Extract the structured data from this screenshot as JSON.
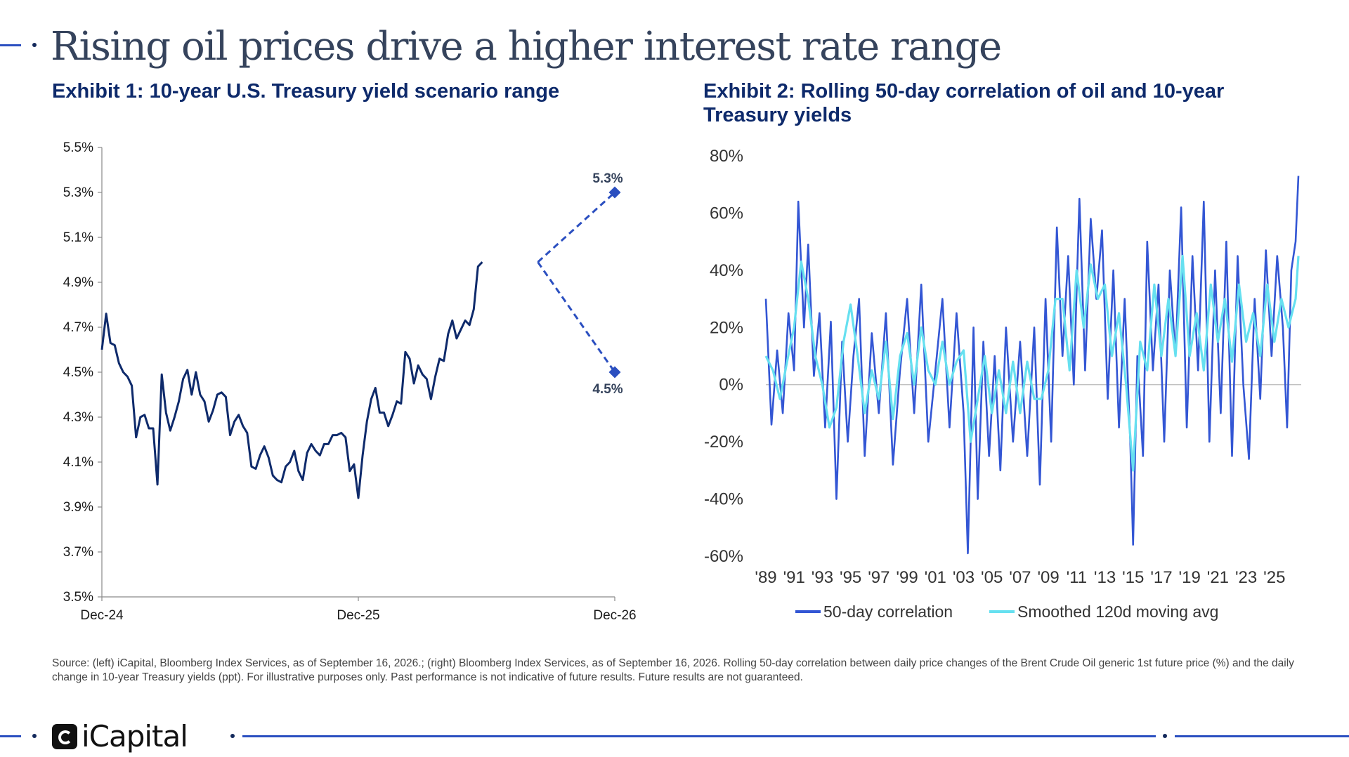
{
  "title": "Rising oil prices drive a higher interest rate range",
  "logo_text": "iCapital",
  "source": "Source: (left) iCapital, Bloomberg Index Services, as of September 16, 2026.; (right) Bloomberg Index Services, as of September 16, 2026. Rolling 50-day correlation between daily price changes of the Brent Crude Oil generic 1st future price (%) and the daily change in 10-year Treasury yields (ppt). For illustrative purposes only. Past performance is not indicative of future results. Future results are not guaranteed.",
  "colors": {
    "accent": "#2b4fc0",
    "navy": "#0e2a6b",
    "corr": "#3356d4",
    "smooth": "#66e0f0"
  },
  "chart_data": [
    {
      "type": "line",
      "title": "Exhibit 1: 10-year U.S. Treasury yield scenario range",
      "xlabel": "",
      "ylabel": "",
      "x_ticks": [
        "Dec-24",
        "Dec-25",
        "Dec-26"
      ],
      "y_ticks": [
        "5.5%",
        "5.3%",
        "5.1%",
        "4.9%",
        "4.7%",
        "4.5%",
        "4.3%",
        "4.1%",
        "3.9%",
        "3.7%",
        "3.5%"
      ],
      "ylim": [
        3.5,
        5.5
      ],
      "xlim": [
        0,
        24
      ],
      "grid": false,
      "series": [
        {
          "style": "solid",
          "x": [
            0,
            0.2,
            0.4,
            0.6,
            0.8,
            1.0,
            1.2,
            1.4,
            1.6,
            1.8,
            2.0,
            2.2,
            2.4,
            2.6,
            2.8,
            3.0,
            3.2,
            3.4,
            3.6,
            3.8,
            4.0,
            4.2,
            4.4,
            4.6,
            4.8,
            5.0,
            5.2,
            5.4,
            5.6,
            5.8,
            6.0,
            6.2,
            6.4,
            6.6,
            6.8,
            7.0,
            7.2,
            7.4,
            7.6,
            7.8,
            8.0,
            8.2,
            8.4,
            8.6,
            8.8,
            9.0,
            9.2,
            9.4,
            9.6,
            9.8,
            10.0,
            10.2,
            10.4,
            10.6,
            10.8,
            11.0,
            11.2,
            11.4,
            11.6,
            11.8,
            12.0,
            12.2,
            12.4,
            12.6,
            12.8,
            13.0,
            13.2,
            13.4,
            13.6,
            13.8,
            14.0,
            14.2,
            14.4,
            14.6,
            14.8,
            15.0,
            15.2,
            15.4,
            15.6,
            15.8,
            16.0,
            16.2,
            16.4,
            16.6,
            16.8,
            17.0,
            17.2,
            17.4,
            17.6,
            17.8,
            18.0,
            18.2,
            18.4,
            18.6,
            18.8,
            19.0,
            19.2,
            19.4,
            19.6,
            19.8,
            20.0,
            20.2,
            20.4,
            20.6,
            20.8,
            21.0,
            21.2,
            21.4,
            21.6,
            21.8,
            22.0,
            22.2,
            22.4,
            22.6,
            22.8,
            23.0,
            23.2,
            23.4,
            23.6,
            23.8,
            24.0
          ],
          "y": [
            4.6,
            4.76,
            4.63,
            4.62,
            4.54,
            4.5,
            4.48,
            4.44,
            4.21,
            4.3,
            4.31,
            4.25,
            4.25,
            4.0,
            4.49,
            4.32,
            4.24,
            4.3,
            4.37,
            4.47,
            4.51,
            4.4,
            4.5,
            4.4,
            4.37,
            4.28,
            4.33,
            4.4,
            4.41,
            4.39,
            4.22,
            4.28,
            4.31,
            4.26,
            4.23,
            4.08,
            4.07,
            4.13,
            4.17,
            4.12,
            4.04,
            4.02,
            4.01,
            4.08,
            4.1,
            4.15,
            4.06,
            4.02,
            4.14,
            4.18,
            4.15,
            4.13,
            4.18,
            4.18,
            4.22,
            4.22,
            4.23,
            4.21,
            4.06,
            4.09,
            3.94,
            4.13,
            4.28,
            4.38,
            4.43,
            4.32,
            4.32,
            4.26,
            4.31,
            4.37,
            4.36,
            4.59,
            4.56,
            4.45,
            4.53,
            4.49,
            4.47,
            4.38,
            4.48,
            4.56,
            4.55,
            4.67,
            4.73,
            4.65,
            4.69,
            4.73,
            4.71,
            4.78,
            4.97,
            4.99,
            null,
            null,
            null,
            null,
            null,
            null,
            null,
            null,
            null,
            null,
            null,
            null,
            null,
            null,
            null,
            null,
            null,
            null,
            null,
            null,
            null,
            null,
            null,
            null,
            null,
            null,
            null,
            null,
            null,
            null,
            null
          ]
        },
        {
          "name": "",
          "style": "dashed",
          "x": [
            20.4,
            24
          ],
          "y": [
            4.99,
            5.3
          ],
          "end_label": "5.3%"
        },
        {
          "name": "",
          "style": "dashed",
          "x": [
            20.4,
            24
          ],
          "y": [
            4.99,
            4.5
          ],
          "end_label": "4.5%"
        }
      ]
    },
    {
      "type": "line",
      "title": "Exhibit 2: Rolling 50-day correlation of oil and 10-year Treasury yields",
      "xlabel": "",
      "ylabel": "",
      "x_ticks": [
        "'89",
        "'91",
        "'93",
        "'95",
        "'97",
        "'99",
        "'01",
        "'03",
        "'05",
        "'07",
        "'09",
        "'11",
        "'13",
        "'15",
        "'17",
        "'19",
        "'21",
        "'23",
        "'25"
      ],
      "y_ticks": [
        "80%",
        "60%",
        "40%",
        "20%",
        "0%",
        "-20%",
        "-40%",
        "-60%"
      ],
      "ylim": [
        -60,
        80
      ],
      "xlim": [
        1989,
        2026.9
      ],
      "legend": "bottom",
      "series": [
        {
          "name": "50-day correlation",
          "color": "#3356d4",
          "x": [
            1989.0,
            1989.4,
            1989.8,
            1990.2,
            1990.6,
            1991.0,
            1991.3,
            1991.7,
            1992.0,
            1992.4,
            1992.8,
            1993.2,
            1993.6,
            1994.0,
            1994.4,
            1994.8,
            1995.2,
            1995.6,
            1996.0,
            1996.5,
            1997.0,
            1997.5,
            1998.0,
            1998.5,
            1999.0,
            1999.5,
            2000.0,
            2000.5,
            2001.0,
            2001.5,
            2002.0,
            2002.5,
            2003.0,
            2003.3,
            2003.7,
            2004.0,
            2004.4,
            2004.8,
            2005.2,
            2005.6,
            2006.0,
            2006.5,
            2007.0,
            2007.5,
            2008.0,
            2008.4,
            2008.8,
            2009.2,
            2009.6,
            2010.0,
            2010.4,
            2010.8,
            2011.2,
            2011.6,
            2012.0,
            2012.4,
            2012.8,
            2013.2,
            2013.6,
            2014.0,
            2014.4,
            2014.8,
            2015.0,
            2015.3,
            2015.7,
            2016.0,
            2016.4,
            2016.8,
            2017.2,
            2017.6,
            2018.0,
            2018.4,
            2018.8,
            2019.2,
            2019.6,
            2020.0,
            2020.4,
            2020.8,
            2021.2,
            2021.6,
            2022.0,
            2022.4,
            2022.8,
            2023.2,
            2023.6,
            2024.0,
            2024.4,
            2024.8,
            2025.2,
            2025.6,
            2025.9,
            2026.2,
            2026.5,
            2026.7
          ],
          "y": [
            30,
            -14,
            12,
            -10,
            25,
            5,
            64,
            20,
            49,
            3,
            25,
            -15,
            22,
            -40,
            15,
            -20,
            10,
            30,
            -25,
            18,
            -10,
            25,
            -28,
            5,
            30,
            -10,
            35,
            -20,
            5,
            30,
            -15,
            25,
            -10,
            -59,
            20,
            -40,
            15,
            -25,
            10,
            -30,
            20,
            -20,
            15,
            -25,
            20,
            -35,
            30,
            -20,
            55,
            10,
            45,
            0,
            65,
            5,
            58,
            30,
            54,
            -5,
            40,
            -15,
            30,
            -20,
            -56,
            10,
            -25,
            50,
            5,
            35,
            -20,
            40,
            10,
            62,
            -15,
            45,
            5,
            64,
            -20,
            40,
            -10,
            50,
            -25,
            45,
            0,
            -26,
            30,
            -5,
            47,
            10,
            45,
            20,
            -15,
            40,
            50,
            73
          ]
        },
        {
          "name": "Smoothed 120d moving avg",
          "color": "#66e0f0",
          "x": [
            1989.0,
            1989.5,
            1990.0,
            1990.5,
            1991.0,
            1991.5,
            1992.0,
            1992.5,
            1993.0,
            1993.5,
            1994.0,
            1994.5,
            1995.0,
            1995.5,
            1996.0,
            1996.5,
            1997.0,
            1997.5,
            1998.0,
            1998.5,
            1999.0,
            1999.5,
            2000.0,
            2000.5,
            2001.0,
            2001.5,
            2002.0,
            2002.5,
            2003.0,
            2003.5,
            2004.0,
            2004.5,
            2005.0,
            2005.5,
            2006.0,
            2006.5,
            2007.0,
            2007.5,
            2008.0,
            2008.5,
            2009.0,
            2009.5,
            2010.0,
            2010.5,
            2011.0,
            2011.5,
            2012.0,
            2012.5,
            2013.0,
            2013.5,
            2014.0,
            2014.5,
            2015.0,
            2015.5,
            2016.0,
            2016.5,
            2017.0,
            2017.5,
            2018.0,
            2018.5,
            2019.0,
            2019.5,
            2020.0,
            2020.5,
            2021.0,
            2021.5,
            2022.0,
            2022.5,
            2023.0,
            2023.5,
            2024.0,
            2024.5,
            2025.0,
            2025.5,
            2026.0,
            2026.5,
            2026.7
          ],
          "y": [
            10,
            5,
            -5,
            8,
            20,
            43,
            30,
            10,
            0,
            -15,
            -8,
            15,
            28,
            10,
            -10,
            5,
            -5,
            15,
            -12,
            10,
            18,
            0,
            20,
            5,
            0,
            15,
            0,
            8,
            12,
            -20,
            -5,
            10,
            -10,
            5,
            -10,
            8,
            -10,
            8,
            -5,
            -5,
            5,
            30,
            30,
            5,
            40,
            20,
            42,
            30,
            35,
            10,
            25,
            0,
            -30,
            15,
            5,
            35,
            10,
            30,
            10,
            45,
            10,
            25,
            5,
            35,
            15,
            30,
            8,
            35,
            15,
            25,
            10,
            35,
            15,
            30,
            20,
            30,
            45
          ]
        }
      ]
    }
  ]
}
